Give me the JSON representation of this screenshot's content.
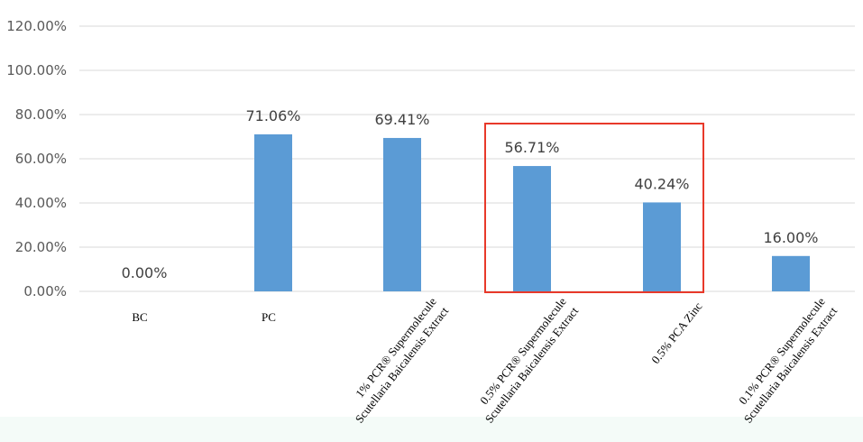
{
  "chart_data": {
    "type": "bar",
    "categories": [
      "BC",
      "PC",
      [
        "1% PCR® Supermolecule",
        "Scutellaria Baicalensis Extract"
      ],
      [
        "0.5% PCR® Supermolecule",
        "Scutellaria Baicalensis Extract"
      ],
      "0.5% PCA Zinc",
      [
        "0.1% PCR® Supermolecule",
        "Scutellaria Baicalensis Extract"
      ]
    ],
    "values": [
      0.0,
      71.06,
      69.41,
      56.71,
      40.24,
      16.0
    ],
    "value_labels": [
      "0.00%",
      "71.06%",
      "69.41%",
      "56.71%",
      "40.24%",
      "16.00%"
    ],
    "ylim": [
      0,
      120
    ],
    "yticks": [
      {
        "value": 0,
        "label": "0.00%"
      },
      {
        "value": 20,
        "label": "20.00%"
      },
      {
        "value": 40,
        "label": "40.00%"
      },
      {
        "value": 60,
        "label": "60.00%"
      },
      {
        "value": 80,
        "label": "80.00%"
      },
      {
        "value": 100,
        "label": "100.00%"
      },
      {
        "value": 120,
        "label": "120.00%"
      }
    ],
    "grid": true,
    "legend": "none",
    "bar_color": "#5b9bd5",
    "highlight": {
      "categories": [
        3,
        4
      ],
      "color": "#e8392a"
    }
  }
}
